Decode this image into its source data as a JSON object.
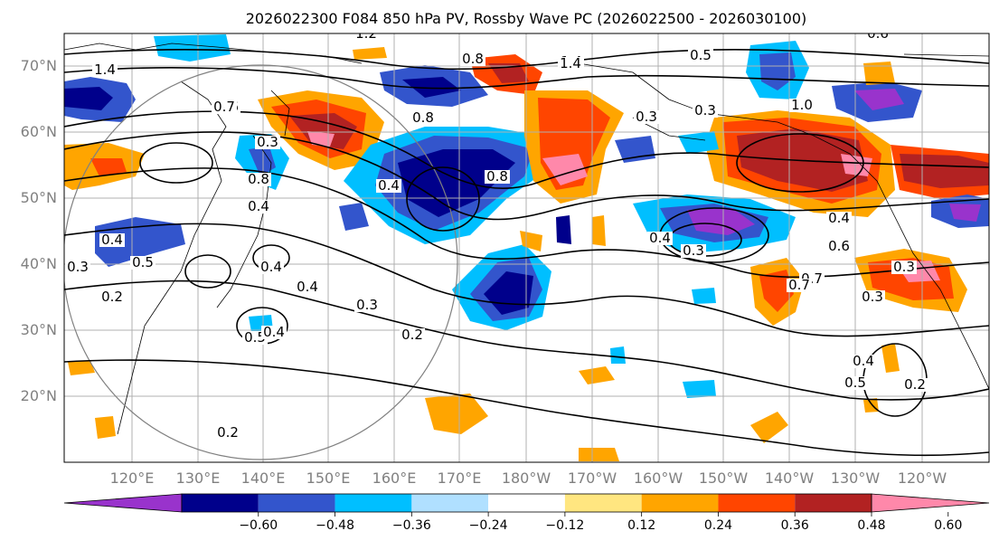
{
  "title": "2026022300 F084 850 hPa PV, Rossby Wave PC (2026022500 - 2026030100)",
  "lat_labels": [
    "70°N",
    "60°N",
    "50°N",
    "40°N",
    "30°N",
    "20°N"
  ],
  "lon_labels": [
    "120°E",
    "130°E",
    "140°E",
    "150°E",
    "160°E",
    "170°E",
    "180°W",
    "170°W",
    "160°W",
    "150°W",
    "140°W",
    "130°W",
    "120°W"
  ],
  "colorbar": {
    "colors": [
      "#9933cc",
      "#00008b",
      "#3355cc",
      "#00bfff",
      "#b0e0ff",
      "#ffffff",
      "#ffe680",
      "#ffa500",
      "#ff4500",
      "#b22222",
      "#ff88aa"
    ],
    "tick_labels": [
      "−0.60",
      "−0.48",
      "−0.36",
      "−0.24",
      "−0.12",
      "0.12",
      "0.24",
      "0.36",
      "0.48",
      "0.60"
    ]
  },
  "contour_labels": [
    "1.2",
    "1.4",
    "0.8",
    "1.4",
    "0.6",
    "0.8",
    "0.7",
    "0.7",
    "0.4",
    "0.5",
    "0.3",
    "0.8",
    "0.8",
    "0.4",
    "1.0",
    "0.4",
    "1.4",
    "0.5",
    "0.4",
    "0.4",
    "0.6",
    "0.3",
    "0.4",
    "0.3",
    "0.2",
    "0.5",
    "0.4",
    "0.2",
    "0.3",
    "0.7",
    "0.6",
    "0.3",
    "0.3",
    "0.4",
    "0.5",
    "0.2",
    "0.2",
    "0.3",
    "0.4",
    "0.3"
  ]
}
